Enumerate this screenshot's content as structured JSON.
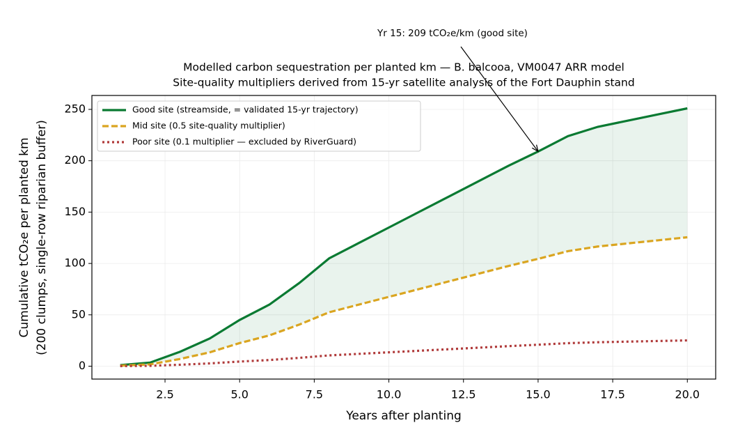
{
  "chart_data": {
    "type": "line",
    "title": [
      "Modelled carbon sequestration per planted km — B. balcooa, VM0047 ARR model",
      "Site-quality multipliers derived from 15-yr satellite analysis of the Fort Dauphin stand"
    ],
    "xlabel": "Years after planting",
    "ylabel": [
      "Cumulative tCO₂e per planted km",
      "(200 clumps, single-row riparian buffer)"
    ],
    "x": [
      1,
      2,
      3,
      4,
      5,
      6,
      7,
      8,
      9,
      10,
      11,
      12,
      13,
      14,
      15,
      16,
      17,
      18,
      19,
      20
    ],
    "series": [
      {
        "name": "Good site (streamside, = validated 15-yr trajectory)",
        "color": "#0a7a32",
        "style": "solid",
        "values": [
          1,
          3.5,
          14,
          27,
          45,
          60,
          81,
          105,
          120,
          135,
          150,
          165,
          180,
          195,
          209,
          224,
          233,
          239,
          245,
          251
        ]
      },
      {
        "name": "Mid site (0.5 site-quality multiplier)",
        "color": "#daa520",
        "style": "dashed",
        "values": [
          0.5,
          1.75,
          7,
          13.5,
          22.5,
          30,
          40.5,
          52.5,
          60,
          67.5,
          75,
          82.5,
          90,
          97.5,
          104.5,
          112,
          116.5,
          119.5,
          122.5,
          125.5
        ]
      },
      {
        "name": "Poor site (0.1 multiplier — excluded by RiverGuard)",
        "color": "#b03a3a",
        "style": "dotted",
        "values": [
          0.1,
          0.35,
          1.4,
          2.7,
          4.5,
          6,
          8.1,
          10.5,
          12,
          13.5,
          15,
          16.5,
          18,
          19.5,
          20.9,
          22.4,
          23.3,
          23.9,
          24.5,
          25.1
        ]
      }
    ],
    "fill_between": {
      "color": "#0a7a32"
    },
    "annotation": {
      "text": "Yr 15: 209 tCO₂e/km (good site)",
      "x": 15,
      "y": 209
    },
    "xlim": [
      0.05,
      20.95
    ],
    "ylim": [
      -12.55,
      263.55
    ],
    "xticks": [
      2.5,
      {
        "value": 5,
        "label": "5.0"
      },
      7.5,
      {
        "value": 10,
        "label": "10.0"
      },
      12.5,
      {
        "value": 15,
        "label": "15.0"
      },
      17.5,
      {
        "value": 20,
        "label": "20.0"
      }
    ],
    "yticks": [
      0,
      50,
      100,
      150,
      200,
      250
    ],
    "grid": true,
    "legend": "upper left"
  }
}
